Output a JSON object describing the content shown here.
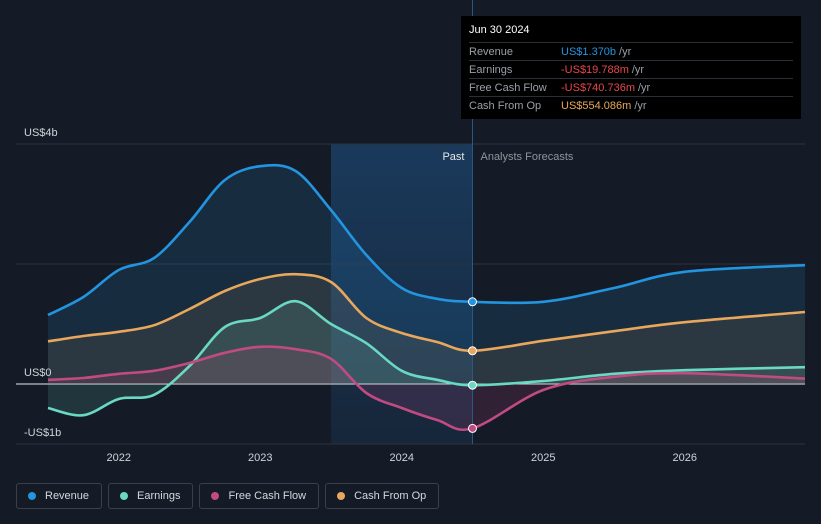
{
  "chart_data": {
    "type": "area",
    "y_unit": "US$ billions",
    "ylim": [
      -1,
      4
    ],
    "xlim": [
      2021.5,
      2026.85
    ],
    "y_tick_labels": [
      {
        "value": 4,
        "label": "US$4b"
      },
      {
        "value": 0,
        "label": "US$0"
      },
      {
        "value": -1,
        "label": "-US$1b"
      }
    ],
    "x_tick_labels": [
      {
        "value": 2022,
        "label": "2022"
      },
      {
        "value": 2023,
        "label": "2023"
      },
      {
        "value": 2024,
        "label": "2024"
      },
      {
        "value": 2025,
        "label": "2025"
      },
      {
        "value": 2026,
        "label": "2026"
      }
    ],
    "past_start": 2023.5,
    "divider": 2024.5,
    "region_labels": {
      "past": "Past",
      "forecast": "Analysts Forecasts"
    },
    "series": [
      {
        "name": "Revenue",
        "color": "#2394df",
        "points": [
          [
            2021.5,
            1.15
          ],
          [
            2021.75,
            1.45
          ],
          [
            2022.0,
            1.9
          ],
          [
            2022.25,
            2.1
          ],
          [
            2022.5,
            2.7
          ],
          [
            2022.75,
            3.4
          ],
          [
            2023.0,
            3.63
          ],
          [
            2023.25,
            3.55
          ],
          [
            2023.5,
            2.9
          ],
          [
            2023.75,
            2.15
          ],
          [
            2024.0,
            1.6
          ],
          [
            2024.25,
            1.42
          ],
          [
            2024.5,
            1.37
          ],
          [
            2025.0,
            1.37
          ],
          [
            2025.5,
            1.6
          ],
          [
            2026.0,
            1.87
          ],
          [
            2026.85,
            1.98
          ]
        ]
      },
      {
        "name": "Earnings",
        "color": "#6ad9c3",
        "points": [
          [
            2021.5,
            -0.4
          ],
          [
            2021.75,
            -0.52
          ],
          [
            2022.0,
            -0.25
          ],
          [
            2022.25,
            -0.18
          ],
          [
            2022.5,
            0.3
          ],
          [
            2022.75,
            0.95
          ],
          [
            2023.0,
            1.1
          ],
          [
            2023.25,
            1.38
          ],
          [
            2023.5,
            1.0
          ],
          [
            2023.75,
            0.68
          ],
          [
            2024.0,
            0.22
          ],
          [
            2024.25,
            0.07
          ],
          [
            2024.5,
            -0.02
          ],
          [
            2025.0,
            0.05
          ],
          [
            2025.5,
            0.17
          ],
          [
            2026.0,
            0.23
          ],
          [
            2026.85,
            0.28
          ]
        ]
      },
      {
        "name": "Free Cash Flow",
        "color": "#c04b82",
        "points": [
          [
            2021.5,
            0.07
          ],
          [
            2021.75,
            0.1
          ],
          [
            2022.0,
            0.17
          ],
          [
            2022.25,
            0.22
          ],
          [
            2022.5,
            0.35
          ],
          [
            2022.75,
            0.52
          ],
          [
            2023.0,
            0.62
          ],
          [
            2023.25,
            0.58
          ],
          [
            2023.5,
            0.42
          ],
          [
            2023.75,
            -0.15
          ],
          [
            2024.0,
            -0.4
          ],
          [
            2024.25,
            -0.6
          ],
          [
            2024.5,
            -0.74
          ],
          [
            2025.0,
            -0.1
          ],
          [
            2025.5,
            0.12
          ],
          [
            2026.0,
            0.18
          ],
          [
            2026.85,
            0.09
          ]
        ]
      },
      {
        "name": "Cash From Op",
        "color": "#e8a75c",
        "points": [
          [
            2021.5,
            0.71
          ],
          [
            2021.75,
            0.8
          ],
          [
            2022.0,
            0.87
          ],
          [
            2022.25,
            0.98
          ],
          [
            2022.5,
            1.25
          ],
          [
            2022.75,
            1.55
          ],
          [
            2023.0,
            1.75
          ],
          [
            2023.25,
            1.83
          ],
          [
            2023.5,
            1.7
          ],
          [
            2023.75,
            1.1
          ],
          [
            2024.0,
            0.85
          ],
          [
            2024.25,
            0.7
          ],
          [
            2024.5,
            0.554
          ],
          [
            2025.0,
            0.72
          ],
          [
            2025.5,
            0.88
          ],
          [
            2026.0,
            1.03
          ],
          [
            2026.85,
            1.2
          ]
        ]
      }
    ]
  },
  "tooltip": {
    "date": "Jun 30 2024",
    "rows": [
      {
        "label": "Revenue",
        "value": "US$1.370b",
        "unit": "/yr",
        "color": "#2394df"
      },
      {
        "label": "Earnings",
        "value": "-US$19.788m",
        "unit": "/yr",
        "color": "#e8474b"
      },
      {
        "label": "Free Cash Flow",
        "value": "-US$740.736m",
        "unit": "/yr",
        "color": "#e8474b"
      },
      {
        "label": "Cash From Op",
        "value": "US$554.086m",
        "unit": "/yr",
        "color": "#e8a75c"
      }
    ]
  },
  "legend": [
    {
      "label": "Revenue",
      "color": "#2394df"
    },
    {
      "label": "Earnings",
      "color": "#6ad9c3"
    },
    {
      "label": "Free Cash Flow",
      "color": "#c04b82"
    },
    {
      "label": "Cash From Op",
      "color": "#e8a75c"
    }
  ]
}
